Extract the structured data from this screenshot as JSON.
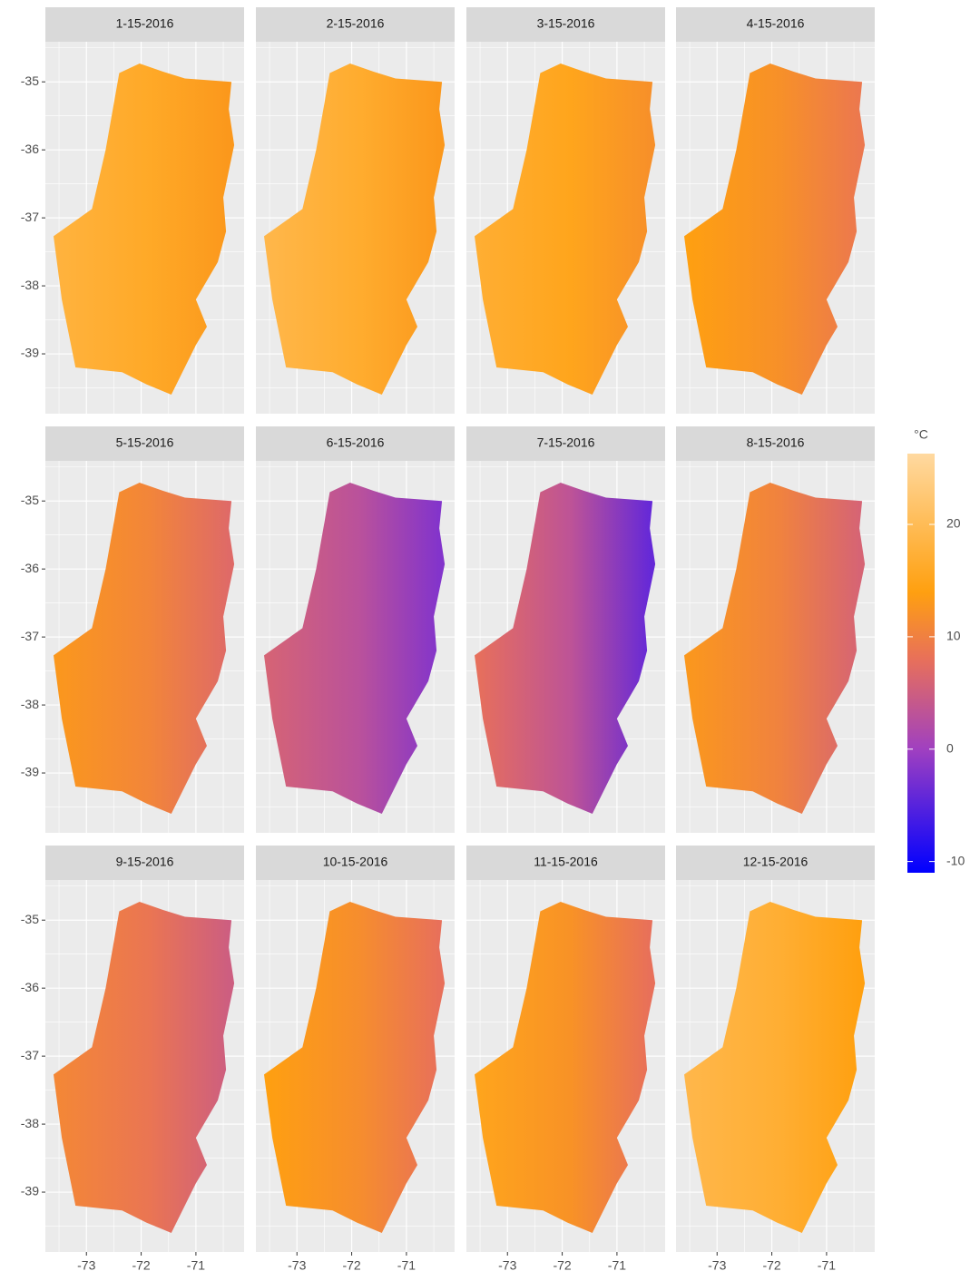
{
  "chart_data": {
    "type": "facet-map",
    "legend_title": "°C",
    "xlim": [
      -73.75,
      -70.12
    ],
    "xticks": [
      -73,
      -72,
      -71
    ],
    "ylim": [
      -39.88,
      -34.41
    ],
    "yticks": [
      -35,
      -36,
      -37,
      -38,
      -39
    ],
    "clim": [
      -11,
      26.3
    ],
    "cticks": [
      -10,
      0,
      10,
      20
    ],
    "color_stops": [
      {
        "value": -11,
        "color": "#0000ff"
      },
      {
        "value": 0,
        "color": "#a040c0"
      },
      {
        "value": 8,
        "color": "#e8705a"
      },
      {
        "value": 14,
        "color": "#ffa010"
      },
      {
        "value": 26.3,
        "color": "#ffd9a0"
      }
    ],
    "facets": [
      {
        "title": "1-15-2016",
        "values": [
          18,
          13
        ]
      },
      {
        "title": "2-15-2016",
        "values": [
          19,
          13
        ]
      },
      {
        "title": "3-15-2016",
        "values": [
          17,
          12
        ]
      },
      {
        "title": "4-15-2016",
        "values": [
          14,
          9
        ]
      },
      {
        "title": "5-15-2016",
        "values": [
          13,
          7
        ]
      },
      {
        "title": "6-15-2016",
        "values": [
          6,
          -2
        ]
      },
      {
        "title": "7-15-2016",
        "values": [
          8,
          -4
        ]
      },
      {
        "title": "8-15-2016",
        "values": [
          13,
          6
        ]
      },
      {
        "title": "9-15-2016",
        "values": [
          11,
          5
        ]
      },
      {
        "title": "10-15-2016",
        "values": [
          14,
          8
        ]
      },
      {
        "title": "11-15-2016",
        "values": [
          15,
          8
        ]
      },
      {
        "title": "12-15-2016",
        "values": [
          19,
          14
        ]
      }
    ]
  }
}
